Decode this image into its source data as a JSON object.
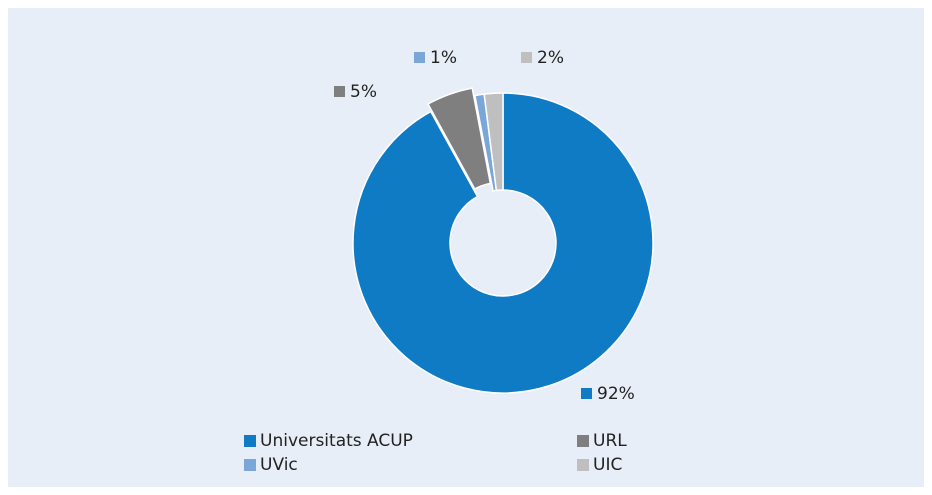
{
  "chart_data": {
    "type": "donut",
    "categories": [
      "Universitats ACUP",
      "URL",
      "UVic",
      "UIC"
    ],
    "values": [
      92,
      5,
      1,
      2
    ],
    "value_labels": [
      "92%",
      "5%",
      "1%",
      "2%"
    ],
    "colors": [
      "#0e7bc4",
      "#7f7f7f",
      "#7aa6d8",
      "#bfbfbf"
    ],
    "legend": "bottom"
  }
}
